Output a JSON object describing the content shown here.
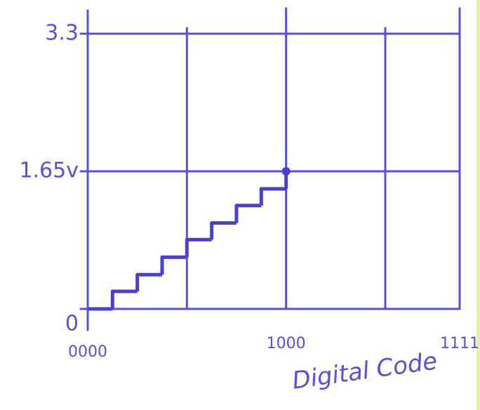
{
  "chart_data": {
    "type": "step",
    "xlabel": "Digital Code",
    "x": [
      0,
      1,
      2,
      3,
      4,
      5,
      6,
      7,
      8
    ],
    "series": [
      {
        "color": "#4b3fd0",
        "values": [
          0,
          0.21,
          0.41,
          0.62,
          0.83,
          1.03,
          1.24,
          1.44,
          1.65
        ]
      }
    ],
    "xlim": [
      0,
      15
    ],
    "xticks": [
      {
        "value": 0,
        "label": "0000"
      },
      {
        "value": 8,
        "label": "1000"
      },
      {
        "value": 15,
        "label": "1111"
      }
    ],
    "xgrid": [
      4,
      12
    ],
    "ylim": [
      0,
      3.3
    ],
    "yticks": [
      0,
      {
        "value": 1.65,
        "label": "1.65v"
      },
      3.3
    ],
    "grid": true
  }
}
